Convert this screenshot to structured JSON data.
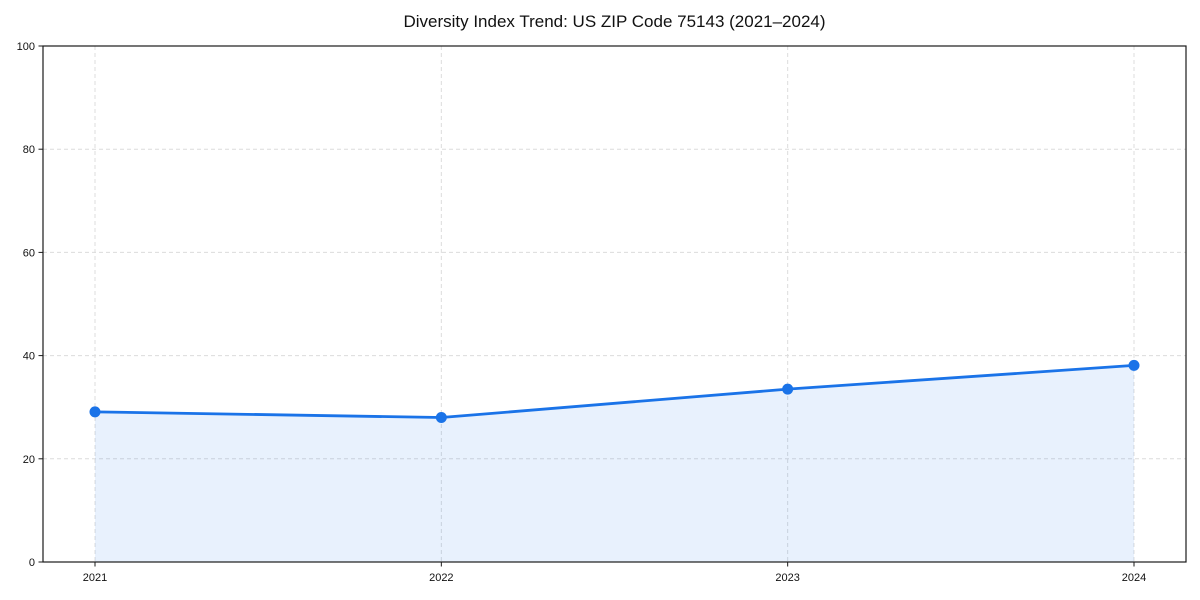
{
  "chart_data": {
    "type": "area",
    "title": "Diversity Index Trend: US ZIP Code 75143 (2021–2024)",
    "x": [
      2021,
      2022,
      2023,
      2024
    ],
    "x_tick_labels": [
      "2021",
      "2022",
      "2023",
      "2024"
    ],
    "series": [
      {
        "name": "Diversity Index",
        "values": [
          29.1,
          28.0,
          33.5,
          38.1
        ]
      }
    ],
    "xlabel": "",
    "ylabel": "",
    "ylim": [
      0,
      100
    ],
    "y_ticks": [
      0,
      20,
      40,
      60,
      80,
      100
    ],
    "grid": true,
    "grid_style": "dashed",
    "legend_position": "none",
    "marker": "circle",
    "colors": {
      "line": "#1a73e8",
      "marker": "#1a73e8",
      "fill": "#1a73e8",
      "fill_opacity": 0.1
    }
  }
}
